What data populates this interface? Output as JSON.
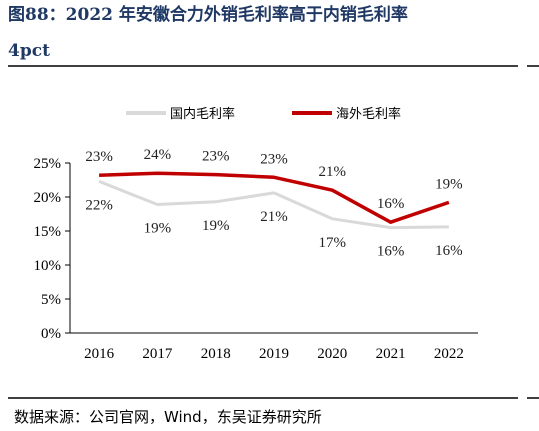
{
  "chart_data": {
    "type": "line",
    "title_line1": "图88：2022 年安徽合力外销毛利率高于内销毛利率",
    "title_line2": "4pct",
    "x": [
      "2016",
      "2017",
      "2018",
      "2019",
      "2020",
      "2021",
      "2022"
    ],
    "series": [
      {
        "name": "国内毛利率",
        "color": "#d9d9d9",
        "values": [
          22.3,
          18.9,
          19.3,
          20.6,
          16.8,
          15.5,
          15.6
        ],
        "labels": [
          "22%",
          "19%",
          "19%",
          "21%",
          "17%",
          "16%",
          "16%"
        ]
      },
      {
        "name": "海外毛利率",
        "color": "#c00000",
        "values": [
          23.2,
          23.5,
          23.3,
          22.9,
          21.0,
          16.3,
          19.2
        ],
        "labels": [
          "23%",
          "24%",
          "23%",
          "23%",
          "21%",
          "16%",
          "19%"
        ]
      }
    ],
    "ylim": [
      0,
      25
    ],
    "yticks": [
      "0%",
      "5%",
      "10%",
      "15%",
      "20%",
      "25%"
    ],
    "ytick_values": [
      0,
      5,
      10,
      15,
      20,
      25
    ],
    "legend_position": "top"
  },
  "source": "数据来源：公司官网，Wind，东吴证券研究所",
  "colors": {
    "title": "#1f3864",
    "rule": "#000000"
  }
}
